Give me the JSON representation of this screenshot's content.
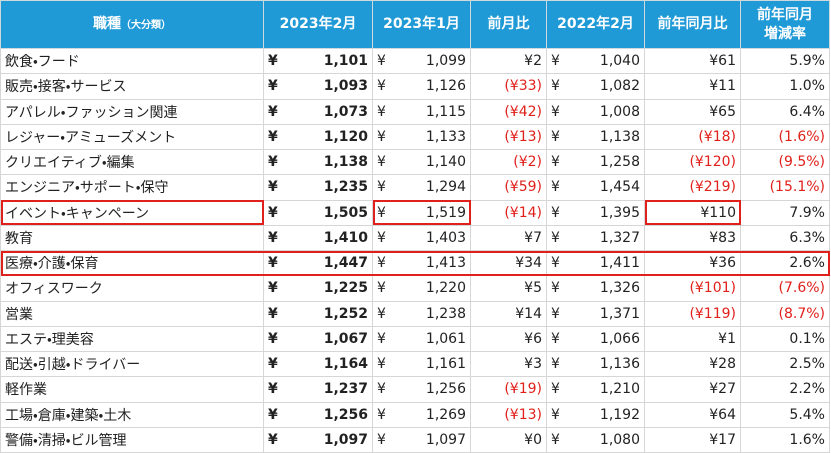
{
  "table": {
    "header": {
      "title": "職種",
      "title_note": "（大分類）",
      "columns": [
        "2023年2月",
        "2023年1月",
        "前月比",
        "2022年2月",
        "前年同月比",
        [
          "前年同月",
          "増減率"
        ]
      ]
    },
    "currency": "¥",
    "rows": [
      [
        "飲食・フード",
        "1,101",
        "1,099",
        "¥2",
        "1,040",
        "¥61",
        "5.9%"
      ],
      [
        "販売・接客・サービス",
        "1,093",
        "1,126",
        "(¥33)",
        "1,082",
        "¥11",
        "1.0%"
      ],
      [
        "アパレル・ファッション関連",
        "1,073",
        "1,115",
        "(¥42)",
        "1,008",
        "¥65",
        "6.4%"
      ],
      [
        "レジャー・アミューズメント",
        "1,120",
        "1,133",
        "(¥13)",
        "1,138",
        "(¥18)",
        "(1.6%)"
      ],
      [
        "クリエイティブ・編集",
        "1,138",
        "1,140",
        "(¥2)",
        "1,258",
        "(¥120)",
        "(9.5%)"
      ],
      [
        "エンジニア・サポート・保守",
        "1,235",
        "1,294",
        "(¥59)",
        "1,454",
        "(¥219)",
        "(15.1%)"
      ],
      [
        "イベント・キャンペーン",
        "1,505",
        "1,519",
        "(¥14)",
        "1,395",
        "¥110",
        "7.9%"
      ],
      [
        "教育",
        "1,410",
        "1,403",
        "¥7",
        "1,327",
        "¥83",
        "6.3%"
      ],
      [
        "医療・介護・保育",
        "1,447",
        "1,413",
        "¥34",
        "1,411",
        "¥36",
        "2.6%"
      ],
      [
        "オフィスワーク",
        "1,225",
        "1,220",
        "¥5",
        "1,326",
        "(¥101)",
        "(7.6%)"
      ],
      [
        "営業",
        "1,252",
        "1,238",
        "¥14",
        "1,371",
        "(¥119)",
        "(8.7%)"
      ],
      [
        "エステ・理美容",
        "1,067",
        "1,061",
        "¥6",
        "1,066",
        "¥1",
        "0.1%"
      ],
      [
        "配送・引越・ドライバー",
        "1,164",
        "1,161",
        "¥3",
        "1,136",
        "¥28",
        "2.5%"
      ],
      [
        "軽作業",
        "1,237",
        "1,256",
        "(¥19)",
        "1,210",
        "¥27",
        "2.2%"
      ],
      [
        "工場・倉庫・建築・土木",
        "1,256",
        "1,269",
        "(¥13)",
        "1,192",
        "¥64",
        "5.4%"
      ],
      [
        "警備・清掃・ビル管理",
        "1,097",
        "1,097",
        "¥0",
        "1,080",
        "¥17",
        "1.6%"
      ]
    ]
  }
}
